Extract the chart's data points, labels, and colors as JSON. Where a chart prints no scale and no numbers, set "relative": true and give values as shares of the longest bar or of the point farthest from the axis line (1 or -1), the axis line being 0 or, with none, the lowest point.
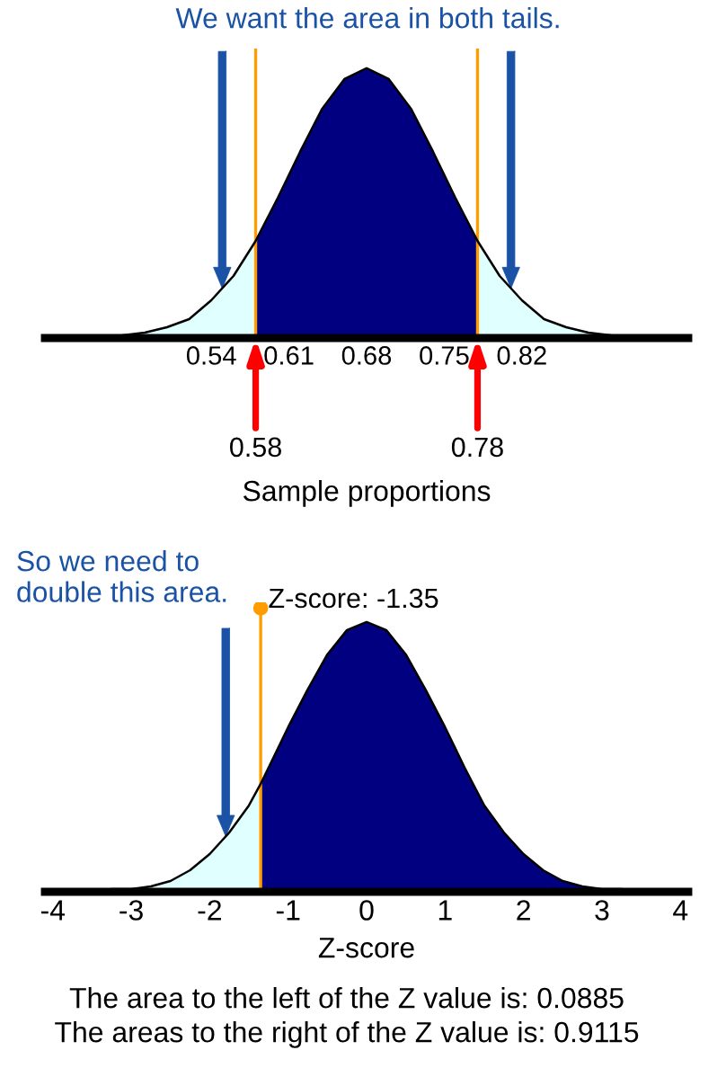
{
  "chart_data": [
    {
      "type": "area",
      "relative": true,
      "title": "We want the area in both tails.",
      "xlabel": "Sample proportions",
      "x": [
        0.4,
        0.42,
        0.44,
        0.46,
        0.48,
        0.5,
        0.52,
        0.54,
        0.56,
        0.58,
        0.6,
        0.62,
        0.64,
        0.66,
        0.68,
        0.7,
        0.72,
        0.74,
        0.76,
        0.78,
        0.8,
        0.82,
        0.84,
        0.86,
        0.88,
        0.9,
        0.92,
        0.94,
        0.96
      ],
      "series": [
        {
          "color": "#e0ffff",
          "values": [
            0,
            0,
            0,
            0.01,
            0.02,
            0.04,
            0.07,
            0.14,
            0.23,
            0.36,
            null,
            null,
            null,
            null,
            null,
            null,
            null,
            null,
            null,
            0.36,
            0.23,
            0.14,
            0.07,
            0.04,
            0.02,
            0.01,
            0,
            0,
            0
          ]
        },
        {
          "color": "#000080",
          "values": [
            null,
            null,
            null,
            null,
            null,
            null,
            null,
            null,
            null,
            0.36,
            0.52,
            0.69,
            0.85,
            0.96,
            1,
            0.96,
            0.85,
            0.69,
            0.52,
            0.36,
            null,
            null,
            null,
            null,
            null,
            null,
            null,
            null,
            null
          ]
        },
        {
          "type": "line",
          "color": "#000000",
          "values": [
            0,
            0,
            0,
            0.01,
            0.02,
            0.04,
            0.07,
            0.14,
            0.23,
            0.36,
            0.52,
            0.69,
            0.85,
            0.96,
            1,
            0.96,
            0.85,
            0.69,
            0.52,
            0.36,
            0.23,
            0.14,
            0.07,
            0.04,
            0.02,
            0.01,
            0,
            0,
            0
          ]
        }
      ],
      "xlim": [
        0.39,
        0.97
      ],
      "xticks": [
        0.54,
        0.61,
        0.68,
        0.75,
        0.82
      ],
      "ref_lines": [
        {
          "axis": "x",
          "value": 0.58,
          "label": "0.58",
          "color": "#ff9c00"
        },
        {
          "axis": "x",
          "value": 0.78,
          "label": "0.78",
          "color": "#ff9c00"
        }
      ]
    },
    {
      "type": "area",
      "relative": true,
      "title": "So we need to double this area.",
      "xlabel": "Z-score",
      "x": [
        -4,
        -3.75,
        -3.5,
        -3.25,
        -3,
        -2.75,
        -2.5,
        -2.25,
        -2,
        -1.75,
        -1.5,
        -1.35,
        -1.25,
        -1,
        -0.75,
        -0.5,
        -0.25,
        0,
        0.25,
        0.5,
        0.75,
        1,
        1.25,
        1.5,
        1.75,
        2,
        2.25,
        2.5,
        2.75,
        3,
        3.25,
        3.5,
        3.75,
        4
      ],
      "series": [
        {
          "color": "#e0ffff",
          "values": [
            0,
            0,
            0,
            0.01,
            0.01,
            0.02,
            0.04,
            0.08,
            0.14,
            0.22,
            0.32,
            0.4,
            null,
            null,
            null,
            null,
            null,
            null,
            null,
            null,
            null,
            null,
            null,
            null,
            null,
            null,
            null,
            null,
            null,
            null,
            null,
            null,
            null,
            null
          ]
        },
        {
          "color": "#000080",
          "values": [
            null,
            null,
            null,
            null,
            null,
            null,
            null,
            null,
            null,
            null,
            null,
            0.4,
            0.46,
            0.61,
            0.75,
            0.88,
            0.97,
            1,
            0.97,
            0.88,
            0.75,
            0.61,
            0.46,
            0.32,
            0.22,
            0.14,
            0.08,
            0.04,
            0.02,
            0.01,
            0.01,
            0,
            0,
            0
          ]
        },
        {
          "type": "line",
          "color": "#000000",
          "values": [
            0,
            0,
            0,
            0.01,
            0.01,
            0.02,
            0.04,
            0.08,
            0.14,
            0.22,
            0.32,
            0.4,
            0.46,
            0.61,
            0.75,
            0.88,
            0.97,
            1,
            0.97,
            0.88,
            0.75,
            0.61,
            0.46,
            0.32,
            0.22,
            0.14,
            0.08,
            0.04,
            0.02,
            0.01,
            0.01,
            0,
            0,
            0
          ]
        }
      ],
      "xlim": [
        -4.1,
        4.1
      ],
      "xticks": [
        -4,
        -3,
        -2,
        -1,
        0,
        1,
        2,
        3,
        4
      ],
      "ref_lines": [
        {
          "axis": "x",
          "value": -1.35,
          "label": "Z-score: -1.35",
          "color": "#ff9c00"
        }
      ],
      "annotations": [
        "The area to the left of the Z value is: 0.0885",
        "The areas to the right of the Z value is: 0.9115"
      ]
    }
  ]
}
